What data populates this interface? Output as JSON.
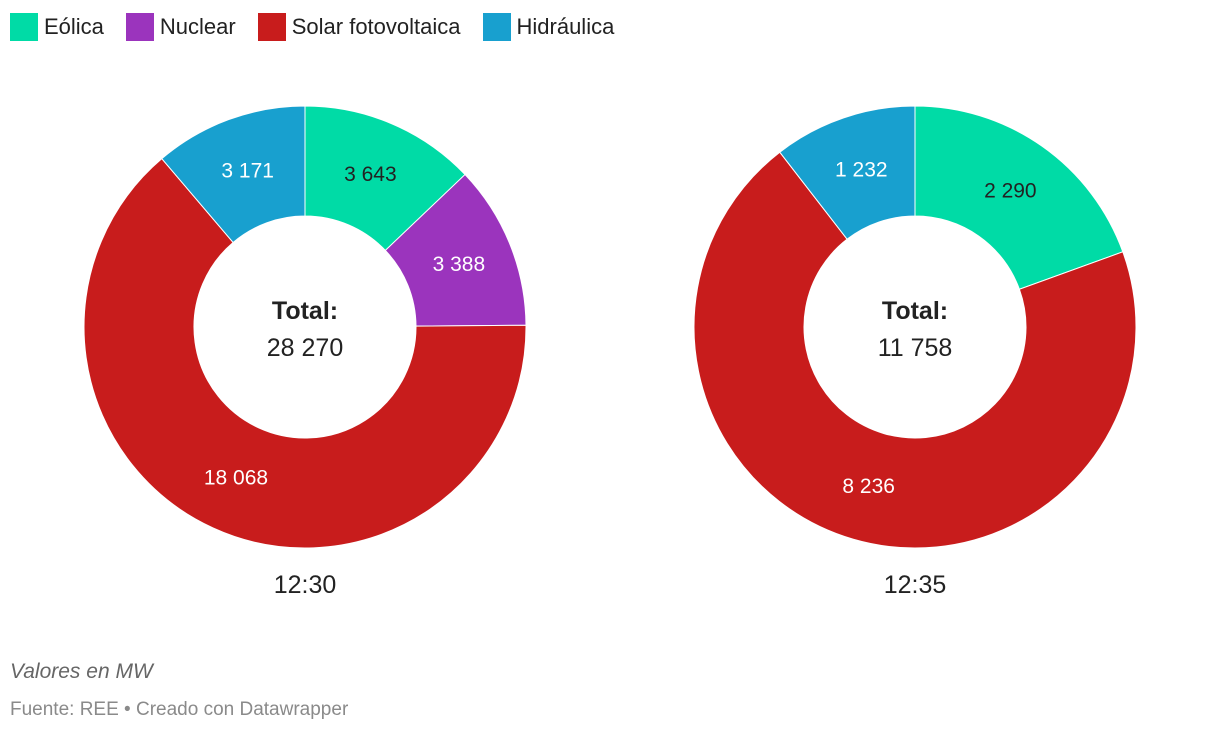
{
  "legend": [
    {
      "label": "Eólica",
      "color": "#00dba6"
    },
    {
      "label": "Nuclear",
      "color": "#9b34bd"
    },
    {
      "label": "Solar fotovoltaica",
      "color": "#c81c1c"
    },
    {
      "label": "Hidráulica",
      "color": "#18a0cf"
    }
  ],
  "chart_data": [
    {
      "type": "pie",
      "title": "12:30",
      "center_label": "Total:",
      "center_value": "28 270",
      "slices": [
        {
          "name": "Eólica",
          "value": 3643,
          "label": "3 643",
          "color": "#00dba6",
          "label_color": "#222222"
        },
        {
          "name": "Nuclear",
          "value": 3388,
          "label": "3 388",
          "color": "#9b34bd",
          "label_color": "#ffffff"
        },
        {
          "name": "Solar fotovoltaica",
          "value": 18068,
          "label": "18 068",
          "color": "#c81c1c",
          "label_color": "#ffffff"
        },
        {
          "name": "Hidráulica",
          "value": 3171,
          "label": "3 171",
          "color": "#18a0cf",
          "label_color": "#ffffff"
        }
      ]
    },
    {
      "type": "pie",
      "title": "12:35",
      "center_label": "Total:",
      "center_value": "11 758",
      "slices": [
        {
          "name": "Eólica",
          "value": 2290,
          "label": "2 290",
          "color": "#00dba6",
          "label_color": "#222222"
        },
        {
          "name": "Solar fotovoltaica",
          "value": 8236,
          "label": "8 236",
          "color": "#c81c1c",
          "label_color": "#ffffff"
        },
        {
          "name": "Hidráulica",
          "value": 1232,
          "label": "1 232",
          "color": "#18a0cf",
          "label_color": "#ffffff"
        }
      ]
    }
  ],
  "notes": {
    "units": "Valores en MW",
    "source": "Fuente: REE • Creado con Datawrapper"
  }
}
